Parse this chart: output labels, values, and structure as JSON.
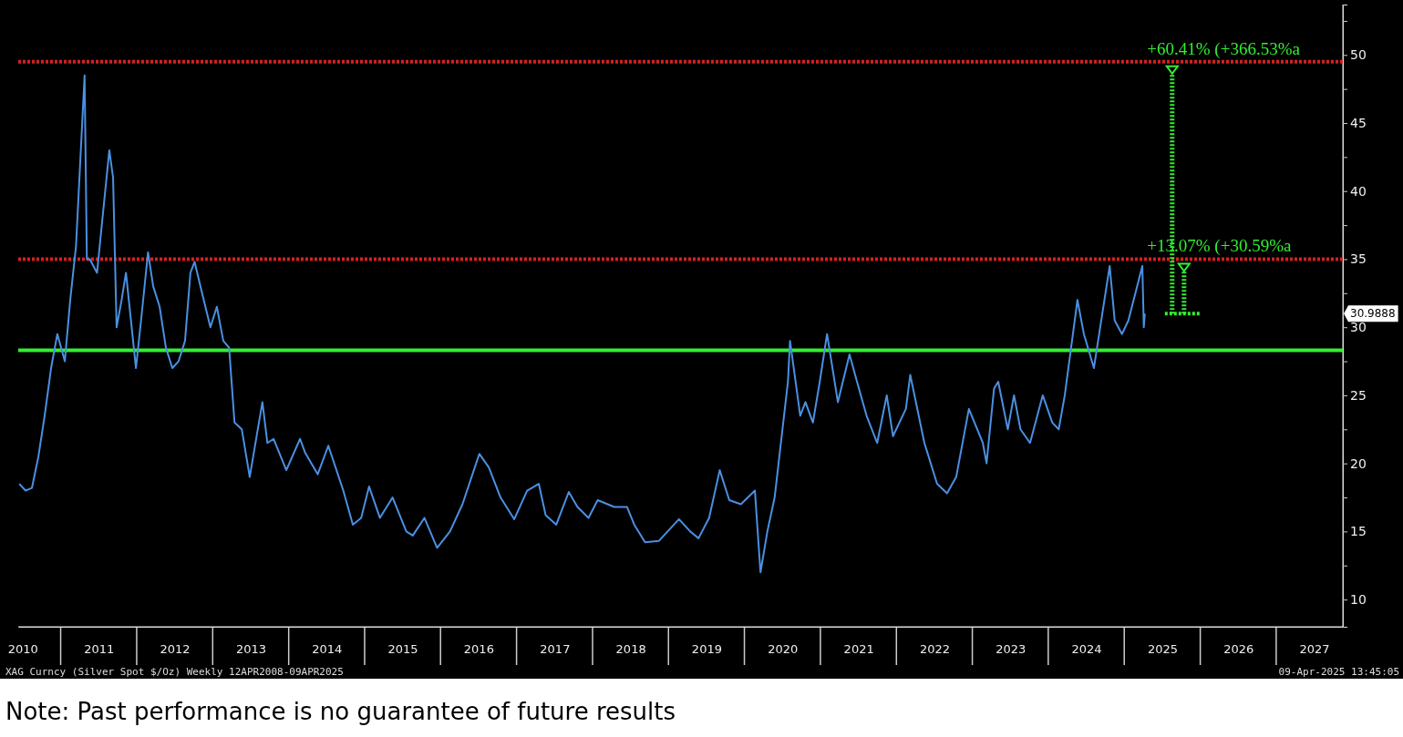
{
  "chart_data": {
    "type": "line",
    "xlim": [
      "2010-06-10",
      "2027-11-17"
    ],
    "ylim": [
      8,
      53.7
    ],
    "xticks": [
      {
        "value": "2010-07-01",
        "label": "2010"
      },
      {
        "value": "2011-07-02",
        "label": "2011"
      },
      {
        "value": "2012-07-01",
        "label": "2012"
      },
      {
        "value": "2013-07-02",
        "label": "2013"
      },
      {
        "value": "2014-07-02",
        "label": "2014"
      },
      {
        "value": "2015-07-02",
        "label": "2015"
      },
      {
        "value": "2016-07-01",
        "label": "2016"
      },
      {
        "value": "2017-07-02",
        "label": "2017"
      },
      {
        "value": "2018-07-02",
        "label": "2018"
      },
      {
        "value": "2019-07-02",
        "label": "2019"
      },
      {
        "value": "2020-07-01",
        "label": "2020"
      },
      {
        "value": "2021-07-02",
        "label": "2021"
      },
      {
        "value": "2022-07-02",
        "label": "2022"
      },
      {
        "value": "2023-07-02",
        "label": "2023"
      },
      {
        "value": "2024-07-01",
        "label": "2024"
      },
      {
        "value": "2025-07-02",
        "label": "2025"
      },
      {
        "value": "2026-07-02",
        "label": "2026"
      },
      {
        "value": "2027-07-02",
        "label": "2027"
      }
    ],
    "yticks": [
      10,
      {
        "value": 12.5,
        "label": null
      },
      15,
      {
        "value": 17.5,
        "label": null
      },
      20,
      {
        "value": 22.5,
        "label": null
      },
      25,
      {
        "value": 27.5,
        "label": null
      },
      30,
      {
        "value": 32.5,
        "label": null
      },
      35,
      {
        "value": 37.5,
        "label": null
      },
      40,
      {
        "value": 42.5,
        "label": null
      },
      45,
      {
        "value": 47.5,
        "label": null
      },
      50,
      {
        "value": 52.5,
        "label": null
      }
    ],
    "grid": false,
    "series": [
      {
        "color": "#4a90e2",
        "x": [
          "2010-06-15",
          "2010-07-15",
          "2010-08-15",
          "2010-09-15",
          "2010-10-15",
          "2010-11-15",
          "2010-12-15",
          "2011-01-20",
          "2011-02-15",
          "2011-03-15",
          "2011-04-25",
          "2011-05-06",
          "2011-05-20",
          "2011-06-24",
          "2011-07-20",
          "2011-08-22",
          "2011-09-09",
          "2011-09-26",
          "2011-10-20",
          "2011-11-10",
          "2011-12-28",
          "2012-01-25",
          "2012-02-24",
          "2012-03-20",
          "2012-04-20",
          "2012-05-20",
          "2012-06-20",
          "2012-07-20",
          "2012-08-20",
          "2012-09-15",
          "2012-10-05",
          "2012-11-10",
          "2012-12-20",
          "2013-01-20",
          "2013-02-20",
          "2013-03-20",
          "2013-04-15",
          "2013-05-20",
          "2013-06-27",
          "2013-08-27",
          "2013-09-20",
          "2013-10-20",
          "2013-12-20",
          "2014-02-24",
          "2014-03-20",
          "2014-05-20",
          "2014-07-10",
          "2014-09-20",
          "2014-11-05",
          "2014-12-15",
          "2015-01-22",
          "2015-03-15",
          "2015-05-15",
          "2015-07-20",
          "2015-08-20",
          "2015-10-15",
          "2015-12-15",
          "2016-02-15",
          "2016-04-15",
          "2016-07-05",
          "2016-08-20",
          "2016-10-15",
          "2016-12-20",
          "2017-02-20",
          "2017-04-17",
          "2017-05-20",
          "2017-07-10",
          "2017-09-08",
          "2017-10-20",
          "2017-12-12",
          "2018-01-25",
          "2018-04-15",
          "2018-06-15",
          "2018-07-20",
          "2018-09-10",
          "2018-11-15",
          "2019-02-20",
          "2019-04-15",
          "2019-05-25",
          "2019-07-15",
          "2019-09-04",
          "2019-10-20",
          "2019-12-15",
          "2020-02-20",
          "2020-03-18",
          "2020-04-20",
          "2020-05-25",
          "2020-07-28",
          "2020-08-07",
          "2020-09-25",
          "2020-10-20",
          "2020-11-25",
          "2020-12-28",
          "2021-02-01",
          "2021-03-25",
          "2021-05-20",
          "2021-06-25",
          "2021-08-10",
          "2021-09-30",
          "2021-11-15",
          "2021-12-15",
          "2022-02-15",
          "2022-03-08",
          "2022-05-15",
          "2022-07-15",
          "2022-09-01",
          "2022-10-15",
          "2022-12-15",
          "2023-02-20",
          "2023-03-10",
          "2023-04-15",
          "2023-05-05",
          "2023-06-20",
          "2023-07-20",
          "2023-08-20",
          "2023-10-05",
          "2023-12-05",
          "2024-01-20",
          "2024-02-20",
          "2024-03-20",
          "2024-04-15",
          "2024-05-20",
          "2024-06-20",
          "2024-08-07",
          "2024-10-22",
          "2024-11-15",
          "2024-12-20",
          "2025-01-20",
          "2025-03-28",
          "2025-04-04",
          "2025-04-09"
        ],
        "values": [
          18.5,
          18,
          18.2,
          20.5,
          23.5,
          27,
          29.5,
          27.5,
          32,
          36,
          48.5,
          35,
          35,
          34,
          38,
          43,
          41,
          30,
          32,
          34,
          27,
          31,
          35.5,
          33,
          31.5,
          28.5,
          27,
          27.5,
          29,
          34,
          34.8,
          32.5,
          30,
          31.5,
          29,
          28.5,
          23,
          22.5,
          19,
          24.5,
          21.5,
          21.8,
          19.5,
          21.8,
          20.8,
          19.2,
          21.3,
          18,
          15.5,
          16,
          18.3,
          16,
          17.5,
          15,
          14.7,
          16,
          13.8,
          15,
          17,
          20.7,
          19.7,
          17.5,
          15.9,
          18,
          18.5,
          16.2,
          15.5,
          17.9,
          16.8,
          16,
          17.3,
          16.8,
          16.8,
          15.5,
          14.2,
          14.3,
          15.9,
          15,
          14.5,
          16,
          19.5,
          17.3,
          17,
          18,
          12,
          15,
          17.5,
          26,
          29,
          23.5,
          24.5,
          23,
          26,
          29.5,
          24.5,
          28,
          26,
          23.5,
          21.5,
          25,
          22,
          24,
          26.5,
          21.5,
          18.5,
          17.8,
          19,
          24,
          21.5,
          20,
          25.5,
          26,
          22.5,
          25,
          22.5,
          21.5,
          25,
          23,
          22.5,
          25,
          28,
          32,
          29.5,
          27,
          34.5,
          30.5,
          29.5,
          30.5,
          34.5,
          30,
          31
        ]
      }
    ],
    "ref_lines": [
      {
        "axis": "y",
        "value": 49.5,
        "color": "#d42020",
        "line_style": "dotted"
      },
      {
        "axis": "y",
        "value": 35,
        "color": "#d42020",
        "line_style": "dotted"
      },
      {
        "axis": "y",
        "value": 28.3,
        "color": "#33ee33",
        "line_style": "solid"
      }
    ],
    "annotations": [
      {
        "text": "+60.41% (+366.53%a",
        "x": "2025-04-20",
        "y": 49.5
      },
      {
        "text": "+13.07% (+30.59%a",
        "x": "2025-04-20",
        "y": 35
      },
      "30.9888",
      "XAG Curncy (Silver Spot $/Oz) Weekly 12APR2008-09APR2025",
      "09-Apr-2025 13:45:05",
      "Note: Past performance is no guarantee of future results"
    ]
  }
}
